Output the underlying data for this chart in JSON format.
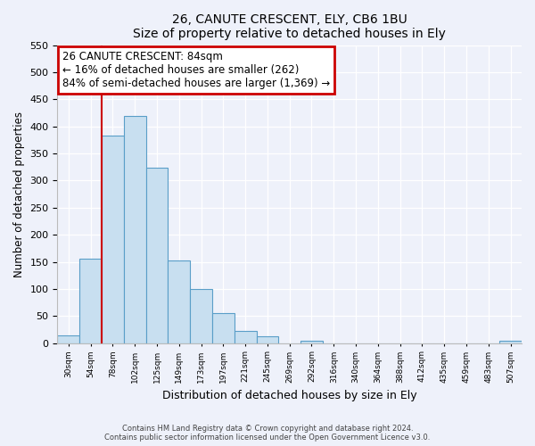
{
  "title": "26, CANUTE CRESCENT, ELY, CB6 1BU",
  "subtitle": "Size of property relative to detached houses in Ely",
  "xlabel": "Distribution of detached houses by size in Ely",
  "ylabel": "Number of detached properties",
  "bin_labels": [
    "30sqm",
    "54sqm",
    "78sqm",
    "102sqm",
    "125sqm",
    "149sqm",
    "173sqm",
    "197sqm",
    "221sqm",
    "245sqm",
    "269sqm",
    "292sqm",
    "316sqm",
    "340sqm",
    "364sqm",
    "388sqm",
    "412sqm",
    "435sqm",
    "459sqm",
    "483sqm",
    "507sqm"
  ],
  "bar_heights": [
    15,
    155,
    383,
    420,
    323,
    153,
    100,
    55,
    22,
    13,
    0,
    5,
    0,
    0,
    0,
    0,
    0,
    0,
    0,
    0,
    5
  ],
  "bar_color": "#c8dff0",
  "bar_edge_color": "#5a9ec8",
  "vline_color": "#cc0000",
  "annotation_title": "26 CANUTE CRESCENT: 84sqm",
  "annotation_line1": "← 16% of detached houses are smaller (262)",
  "annotation_line2": "84% of semi-detached houses are larger (1,369) →",
  "ylim": [
    0,
    550
  ],
  "yticks": [
    0,
    50,
    100,
    150,
    200,
    250,
    300,
    350,
    400,
    450,
    500,
    550
  ],
  "footnote1": "Contains HM Land Registry data © Crown copyright and database right 2024.",
  "footnote2": "Contains public sector information licensed under the Open Government Licence v3.0.",
  "background_color": "#eef1fa",
  "plot_background": "#eef1fa"
}
